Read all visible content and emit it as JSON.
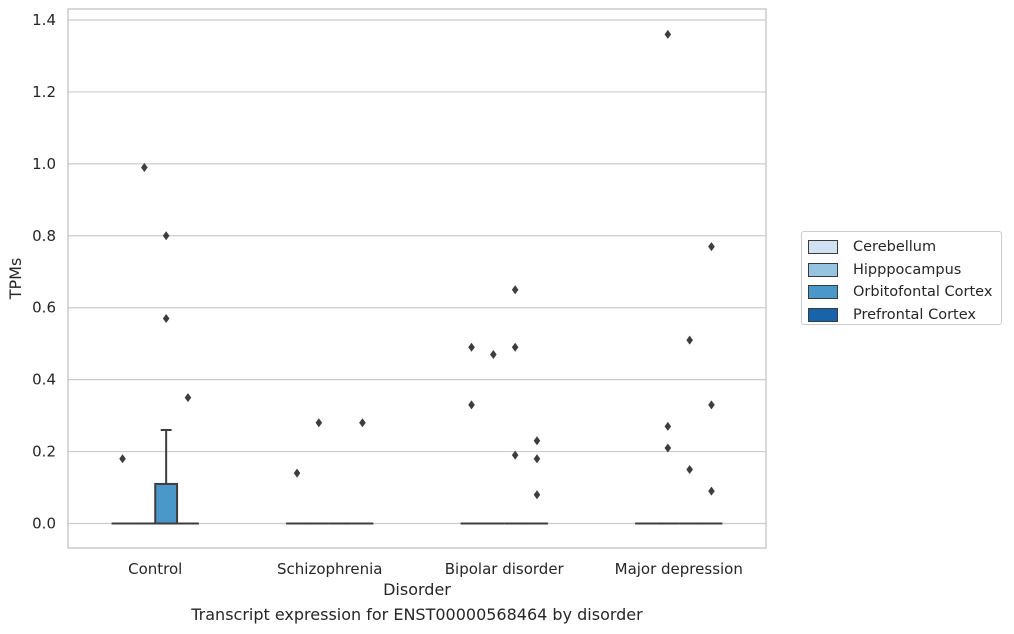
{
  "chart_data": {
    "type": "box",
    "caption": "Transcript expression for ENST00000568464 by disorder",
    "xlabel": "Disorder",
    "ylabel": "TPMs",
    "ylim": [
      -0.065,
      1.43
    ],
    "yticks": [
      0.0,
      0.2,
      0.4,
      0.6,
      0.8,
      1.0,
      1.2,
      1.4
    ],
    "categories": [
      "Control",
      "Schizophrenia",
      "Bipolar disorder",
      "Major depression"
    ],
    "grid": true,
    "legend_position": "right",
    "series": [
      {
        "name": "Cerebellum",
        "color": "#d0e1f2"
      },
      {
        "name": "Hipppocampus",
        "color": "#94c4df"
      },
      {
        "name": "Orbitofontal Cortex",
        "color": "#4a98c9"
      },
      {
        "name": "Prefrontal Cortex",
        "color": "#1764ab"
      }
    ],
    "boxes": [
      {
        "category": 0,
        "series": 0,
        "q1": 0,
        "median": 0,
        "q3": 0,
        "whisker_low": 0,
        "whisker_high": 0,
        "outliers": [
          0.18
        ]
      },
      {
        "category": 0,
        "series": 1,
        "q1": 0,
        "median": 0,
        "q3": 0,
        "whisker_low": 0,
        "whisker_high": 0,
        "outliers": [
          0.99
        ]
      },
      {
        "category": 0,
        "series": 2,
        "q1": 0,
        "median": 0,
        "q3": 0.11,
        "whisker_low": 0,
        "whisker_high": 0.26,
        "outliers": [
          0.8,
          0.57
        ]
      },
      {
        "category": 0,
        "series": 3,
        "q1": 0,
        "median": 0,
        "q3": 0,
        "whisker_low": 0,
        "whisker_high": 0,
        "outliers": [
          0.35
        ]
      },
      {
        "category": 1,
        "series": 0,
        "q1": 0,
        "median": 0,
        "q3": 0,
        "whisker_low": 0,
        "whisker_high": 0,
        "outliers": [
          0.14
        ]
      },
      {
        "category": 1,
        "series": 1,
        "q1": 0,
        "median": 0,
        "q3": 0,
        "whisker_low": 0,
        "whisker_high": 0,
        "outliers": [
          0.28
        ]
      },
      {
        "category": 1,
        "series": 2,
        "q1": 0,
        "median": 0,
        "q3": 0,
        "whisker_low": 0,
        "whisker_high": 0,
        "outliers": []
      },
      {
        "category": 1,
        "series": 3,
        "q1": 0,
        "median": 0,
        "q3": 0,
        "whisker_low": 0,
        "whisker_high": 0,
        "outliers": [
          0.28
        ]
      },
      {
        "category": 2,
        "series": 0,
        "q1": 0,
        "median": 0,
        "q3": 0,
        "whisker_low": 0,
        "whisker_high": 0,
        "outliers": [
          0.49,
          0.33
        ]
      },
      {
        "category": 2,
        "series": 1,
        "q1": 0,
        "median": 0,
        "q3": 0,
        "whisker_low": 0,
        "whisker_high": 0,
        "outliers": [
          0.47
        ]
      },
      {
        "category": 2,
        "series": 2,
        "q1": 0,
        "median": 0,
        "q3": 0,
        "whisker_low": 0,
        "whisker_high": 0,
        "outliers": [
          0.65,
          0.49,
          0.19
        ]
      },
      {
        "category": 2,
        "series": 3,
        "q1": 0,
        "median": 0,
        "q3": 0,
        "whisker_low": 0,
        "whisker_high": 0,
        "outliers": [
          0.23,
          0.18,
          0.08
        ]
      },
      {
        "category": 3,
        "series": 0,
        "q1": 0,
        "median": 0,
        "q3": 0,
        "whisker_low": 0,
        "whisker_high": 0,
        "outliers": []
      },
      {
        "category": 3,
        "series": 1,
        "q1": 0,
        "median": 0,
        "q3": 0,
        "whisker_low": 0,
        "whisker_high": 0,
        "outliers": [
          1.36,
          0.27,
          0.21
        ]
      },
      {
        "category": 3,
        "series": 2,
        "q1": 0,
        "median": 0,
        "q3": 0,
        "whisker_low": 0,
        "whisker_high": 0,
        "outliers": [
          0.51,
          0.15
        ]
      },
      {
        "category": 3,
        "series": 3,
        "q1": 0,
        "median": 0,
        "q3": 0,
        "whisker_low": 0,
        "whisker_high": 0,
        "outliers": [
          0.77,
          0.33,
          0.09
        ]
      }
    ]
  }
}
